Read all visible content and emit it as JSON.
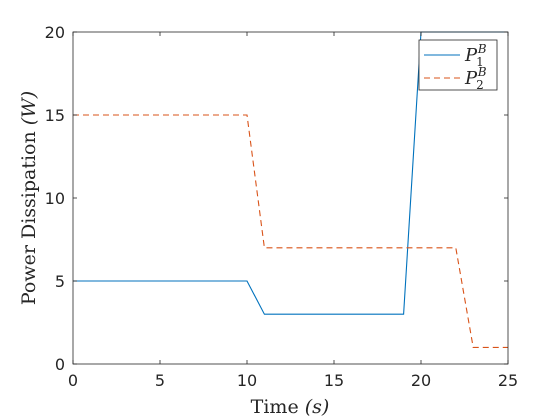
{
  "chart_data": {
    "type": "line",
    "xlabel": {
      "text": "Time ",
      "unit": "(s)"
    },
    "ylabel": {
      "text": "Power Dissipation ",
      "unit": "(W)"
    },
    "xlim": [
      0,
      25
    ],
    "ylim": [
      0,
      20
    ],
    "xticks": [
      "0",
      "5",
      "10",
      "15",
      "20",
      "25"
    ],
    "yticks": [
      "0",
      "5",
      "10",
      "15",
      "20"
    ],
    "grid": false,
    "legend_position": "top-right",
    "series": [
      {
        "name": "P_1^B",
        "label": {
          "base": "P",
          "sub": "1",
          "sup": "B"
        },
        "color": "#0072BD",
        "style": "solid",
        "x": [
          0,
          10,
          11,
          19,
          20,
          25
        ],
        "y": [
          5,
          5,
          3,
          3,
          20,
          20
        ]
      },
      {
        "name": "P_2^B",
        "label": {
          "base": "P",
          "sub": "2",
          "sup": "B"
        },
        "color": "#D95319",
        "style": "dashed",
        "x": [
          0,
          10,
          11,
          22,
          23,
          25
        ],
        "y": [
          15,
          15,
          7,
          7,
          1,
          1
        ]
      }
    ]
  }
}
